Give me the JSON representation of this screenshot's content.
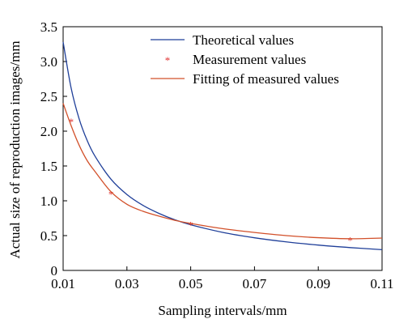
{
  "chart_data": {
    "type": "line",
    "xlabel": "Sampling intervals/mm",
    "ylabel": "Actual size of reproduction images/mm",
    "xlim": [
      0.01,
      0.11
    ],
    "ylim": [
      0,
      3.5
    ],
    "xticks": [
      0.01,
      0.03,
      0.05,
      0.07,
      0.09,
      0.11
    ],
    "xtick_labels": [
      "0.01",
      "0.03",
      "0.05",
      "0.07",
      "0.09",
      "0.11"
    ],
    "yticks": [
      0,
      0.5,
      1.0,
      1.5,
      2.0,
      2.5,
      3.0,
      3.5
    ],
    "ytick_labels": [
      "0",
      "0.5",
      "1.0",
      "1.5",
      "2.0",
      "2.5",
      "3.0",
      "3.5"
    ],
    "grid": false,
    "legend_position": "top-right",
    "series": [
      {
        "name": "Theoretical values",
        "kind": "line",
        "color": "#1f3f99",
        "x": [
          0.01,
          0.0125,
          0.015,
          0.0175,
          0.02,
          0.025,
          0.03,
          0.035,
          0.04,
          0.045,
          0.05,
          0.06,
          0.07,
          0.08,
          0.09,
          0.1,
          0.11
        ],
        "y": [
          3.28,
          2.62,
          2.18,
          1.87,
          1.64,
          1.31,
          1.09,
          0.935,
          0.82,
          0.728,
          0.656,
          0.547,
          0.469,
          0.41,
          0.364,
          0.328,
          0.298
        ]
      },
      {
        "name": "Measurement values",
        "kind": "scatter",
        "color": "#e03030",
        "x": [
          0.0125,
          0.025,
          0.05,
          0.1
        ],
        "y": [
          2.15,
          1.11,
          0.67,
          0.45
        ]
      },
      {
        "name": "Fitting of measured values",
        "kind": "line",
        "color": "#d2502a",
        "x": [
          0.01,
          0.0125,
          0.015,
          0.0175,
          0.02,
          0.025,
          0.03,
          0.035,
          0.04,
          0.045,
          0.05,
          0.06,
          0.07,
          0.08,
          0.09,
          0.1,
          0.11
        ],
        "y": [
          2.4,
          2.08,
          1.8,
          1.58,
          1.42,
          1.13,
          0.95,
          0.85,
          0.78,
          0.72,
          0.675,
          0.6,
          0.545,
          0.5,
          0.47,
          0.455,
          0.465
        ]
      }
    ]
  }
}
